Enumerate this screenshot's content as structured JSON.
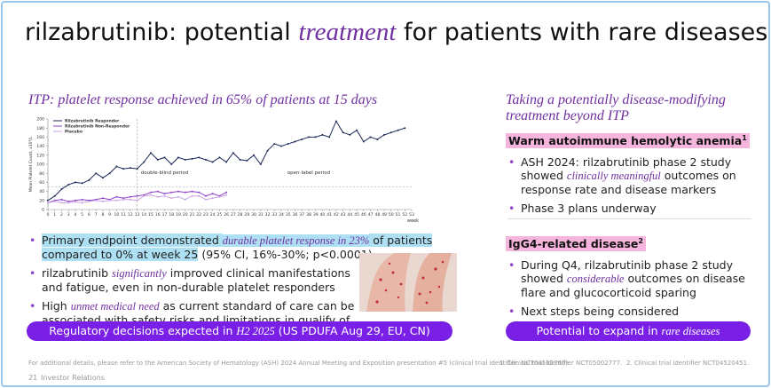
{
  "slide": {
    "title": [
      {
        "text": "rilzabrutinib: potential "
      },
      {
        "text": "treatment",
        "style": "em"
      },
      {
        "text": " for patients with rare diseases"
      }
    ]
  },
  "left": {
    "heading": "ITP: platelet response achieved in 65% of patients at 15 days",
    "bullets": [
      [
        {
          "text": "Primary endpoint demonstrated ",
          "style": "hl"
        },
        {
          "text": "durable platelet response in 23%",
          "style": "hl-em"
        },
        {
          "text": " of patients compared to 0% at week 25",
          "style": "hl"
        },
        {
          "text": " (95% CI, 16%-30%; p<0.0001)"
        }
      ],
      [
        {
          "text": "rilzabrutinib "
        },
        {
          "text": "significantly",
          "style": "em"
        },
        {
          "text": " improved clinical manifestations and fatigue, even in non-durable platelet responders"
        }
      ],
      [
        {
          "text": "High "
        },
        {
          "text": "unmet medical need",
          "style": "em"
        },
        {
          "text": " as current standard of care can be associated with safety risks and limitations in qualify of life"
        }
      ]
    ],
    "button": [
      {
        "text": "Regulatory decisions expected in "
      },
      {
        "text": "H2 2025",
        "style": "em"
      },
      {
        "text": " (US PDUFA Aug 29, EU, CN)"
      }
    ]
  },
  "right": {
    "heading": "Taking a potentially disease-modifying treatment beyond ITP",
    "sections": [
      {
        "title": "Warm autoimmune hemolytic anemia",
        "note": "1",
        "bullets": [
          [
            {
              "text": "ASH 2024: rilzabrutinib phase 2 study showed "
            },
            {
              "text": "clinically meaningful",
              "style": "em"
            },
            {
              "text": " outcomes on response rate and disease markers"
            }
          ],
          [
            {
              "text": "Phase 3 plans underway"
            }
          ]
        ]
      },
      {
        "title": "IgG4-related disease",
        "note": "2",
        "bullets": [
          [
            {
              "text": "During Q4, rilzabrutinib phase 2 study showed "
            },
            {
              "text": "considerable",
              "style": "em"
            },
            {
              "text": " outcomes on disease flare and glucocorticoid sparing"
            }
          ],
          [
            {
              "text": "Next steps being considered"
            }
          ]
        ]
      }
    ],
    "button": [
      {
        "text": "Potential to expand in "
      },
      {
        "text": "rare diseases",
        "style": "em"
      }
    ]
  },
  "footnotes": [
    "For additional details, please refer to the American Society of Hematology (ASH) 2024 Annual Meeting and Exposition presentation #5 (clinical trial identifier: NCT04562766).",
    "1.  Clinical trial identifier NCT05002777.",
    "2.  Clinical trial identifier NCT04520451."
  ],
  "footer": {
    "page": "21",
    "label": "Investor Relations"
  },
  "chart_data": {
    "type": "line",
    "y_label": "Mean Platelet Count, x10⁹/L",
    "x_label": "week",
    "annotations": [
      "double-blind period",
      "open-label period"
    ],
    "xlim": [
      0,
      53
    ],
    "ylim": [
      0,
      200
    ],
    "yticks": [
      0,
      20,
      40,
      60,
      80,
      100,
      120,
      140,
      160,
      180,
      200
    ],
    "xticks": [
      0,
      1,
      2,
      3,
      4,
      5,
      6,
      7,
      8,
      9,
      10,
      11,
      12,
      13,
      14,
      15,
      16,
      17,
      18,
      19,
      20,
      21,
      22,
      23,
      24,
      25,
      26,
      27,
      28,
      29,
      30,
      31,
      32,
      33,
      34,
      35,
      36,
      37,
      38,
      39,
      40,
      41,
      42,
      43,
      44,
      45,
      46,
      47,
      48,
      49,
      50,
      51,
      52,
      53
    ],
    "reference_lines": {
      "x": [
        13
      ],
      "y": [
        50
      ]
    },
    "series": [
      {
        "name": "Rilzabrutinib Responder",
        "color": "#1f2a5a",
        "x": [
          0,
          1,
          2,
          3,
          4,
          5,
          6,
          7,
          8,
          9,
          10,
          11,
          12,
          13,
          14,
          15,
          16,
          17,
          18,
          19,
          20,
          21,
          22,
          23,
          24,
          25,
          26,
          27,
          28,
          29,
          30,
          31,
          32,
          33,
          34,
          35,
          36,
          37,
          38,
          39,
          40,
          41,
          42,
          43,
          44,
          45,
          46,
          47,
          48,
          49,
          50,
          51,
          52
        ],
        "values": [
          20,
          30,
          45,
          55,
          60,
          58,
          65,
          80,
          70,
          80,
          95,
          90,
          92,
          90,
          105,
          125,
          110,
          115,
          100,
          115,
          110,
          112,
          115,
          110,
          105,
          115,
          105,
          125,
          110,
          108,
          120,
          100,
          130,
          145,
          140,
          145,
          150,
          155,
          160,
          160,
          165,
          160,
          195,
          170,
          165,
          175,
          150,
          160,
          155,
          165,
          170,
          175,
          180
        ]
      },
      {
        "name": "Rilzabrutinib Non-Responder",
        "color": "#8e44c9",
        "x": [
          0,
          1,
          2,
          3,
          4,
          5,
          6,
          7,
          8,
          9,
          10,
          11,
          12,
          13,
          14,
          15,
          16,
          17,
          18,
          19,
          20,
          21,
          22,
          23,
          24,
          25,
          26
        ],
        "values": [
          15,
          20,
          22,
          18,
          20,
          22,
          20,
          22,
          25,
          22,
          28,
          25,
          28,
          30,
          32,
          38,
          40,
          35,
          38,
          40,
          38,
          40,
          38,
          30,
          35,
          30,
          38
        ]
      },
      {
        "name": "Placebo",
        "color": "#c9a6e6",
        "x": [
          0,
          1,
          2,
          3,
          4,
          5,
          6,
          7,
          8,
          9,
          10,
          11,
          12,
          13,
          14,
          15,
          16,
          17,
          18,
          19,
          20,
          21,
          22,
          23,
          24,
          25,
          26
        ],
        "values": [
          15,
          18,
          15,
          15,
          17,
          15,
          18,
          20,
          18,
          20,
          20,
          22,
          22,
          20,
          30,
          32,
          28,
          30,
          25,
          28,
          22,
          30,
          30,
          22,
          25,
          28,
          32
        ]
      }
    ]
  }
}
